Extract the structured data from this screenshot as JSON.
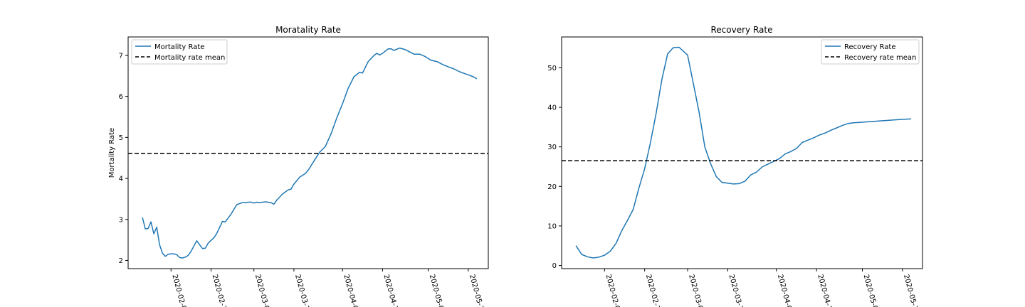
{
  "chart_data": [
    {
      "type": "line",
      "title": "Moratality Rate",
      "xlabel": "",
      "ylabel": "Mortality Rate",
      "xlim": [
        "2020-01-17",
        "2020-05-22"
      ],
      "ylim": [
        1.8,
        7.45
      ],
      "yticks": [
        2,
        3,
        4,
        5,
        6,
        7
      ],
      "xticks": [
        "2020-02-01",
        "2020-02-15",
        "2020-03-01",
        "2020-03-15",
        "2020-04-01",
        "2020-04-15",
        "2020-05-01",
        "2020-05-15"
      ],
      "xtick_labels": [
        "2020-02-0",
        "2020-02-1",
        "2020-03-0",
        "2020-03-1",
        "2020-04-0",
        "2020-04-1",
        "2020-05-0",
        "2020-05-1"
      ],
      "grid": false,
      "legend": "top-left",
      "series": [
        {
          "name": "Mortality Rate",
          "color": "#1f77b4",
          "style": "solid",
          "x": [
            "2020-01-22",
            "2020-01-23",
            "2020-01-24",
            "2020-01-25",
            "2020-01-26",
            "2020-01-27",
            "2020-01-28",
            "2020-01-29",
            "2020-01-30",
            "2020-01-31",
            "2020-02-01",
            "2020-02-02",
            "2020-02-03",
            "2020-02-04",
            "2020-02-05",
            "2020-02-06",
            "2020-02-07",
            "2020-02-08",
            "2020-02-10",
            "2020-02-12",
            "2020-02-13",
            "2020-02-14",
            "2020-02-15",
            "2020-02-16",
            "2020-02-17",
            "2020-02-19",
            "2020-02-20",
            "2020-02-22",
            "2020-02-24",
            "2020-02-26",
            "2020-02-27",
            "2020-02-28",
            "2020-02-29",
            "2020-03-01",
            "2020-03-02",
            "2020-03-03",
            "2020-03-05",
            "2020-03-07",
            "2020-03-08",
            "2020-03-09",
            "2020-03-11",
            "2020-03-13",
            "2020-03-14",
            "2020-03-15",
            "2020-03-17",
            "2020-03-19",
            "2020-03-20",
            "2020-03-22",
            "2020-03-24",
            "2020-03-26",
            "2020-03-28",
            "2020-03-30",
            "2020-04-01",
            "2020-04-03",
            "2020-04-05",
            "2020-04-07",
            "2020-04-08",
            "2020-04-10",
            "2020-04-12",
            "2020-04-13",
            "2020-04-14",
            "2020-04-15",
            "2020-04-17",
            "2020-04-18",
            "2020-04-19",
            "2020-04-21",
            "2020-04-23",
            "2020-04-26",
            "2020-04-28",
            "2020-04-30",
            "2020-05-02",
            "2020-05-04",
            "2020-05-06",
            "2020-05-08",
            "2020-05-10",
            "2020-05-12",
            "2020-05-14",
            "2020-05-16",
            "2020-05-17",
            "2020-05-18"
          ],
          "values": [
            3.05,
            2.77,
            2.78,
            2.94,
            2.65,
            2.81,
            2.38,
            2.18,
            2.1,
            2.15,
            2.16,
            2.16,
            2.14,
            2.07,
            2.06,
            2.08,
            2.12,
            2.22,
            2.48,
            2.29,
            2.3,
            2.42,
            2.49,
            2.55,
            2.66,
            2.95,
            2.94,
            3.13,
            3.36,
            3.41,
            3.41,
            3.42,
            3.42,
            3.4,
            3.42,
            3.41,
            3.43,
            3.41,
            3.37,
            3.47,
            3.62,
            3.72,
            3.74,
            3.86,
            4.03,
            4.12,
            4.2,
            4.42,
            4.64,
            4.78,
            5.09,
            5.48,
            5.82,
            6.2,
            6.48,
            6.59,
            6.57,
            6.85,
            7.0,
            7.05,
            7.01,
            7.05,
            7.16,
            7.16,
            7.12,
            7.18,
            7.14,
            7.03,
            7.03,
            6.97,
            6.88,
            6.85,
            6.78,
            6.72,
            6.67,
            6.6,
            6.55,
            6.5,
            6.47,
            6.43
          ]
        },
        {
          "name": "Mortality rate mean",
          "color": "#000000",
          "style": "dashed",
          "hline": 4.61
        }
      ]
    },
    {
      "type": "line",
      "title": "Recovery Rate",
      "xlabel": "",
      "ylabel": "",
      "xlim": [
        "2020-01-17",
        "2020-05-22"
      ],
      "ylim": [
        -0.8,
        57.8
      ],
      "yticks": [
        0,
        10,
        20,
        30,
        40,
        50
      ],
      "xticks": [
        "2020-02-01",
        "2020-02-15",
        "2020-03-01",
        "2020-03-15",
        "2020-04-01",
        "2020-04-15",
        "2020-05-01",
        "2020-05-15"
      ],
      "xtick_labels": [
        "2020-02-0",
        "2020-02-1",
        "2020-03-0",
        "2020-03-1",
        "2020-04-0",
        "2020-04-1",
        "2020-05-0",
        "2020-05-1"
      ],
      "grid": false,
      "legend": "top-right",
      "series": [
        {
          "name": "Recovery Rate",
          "color": "#1f77b4",
          "style": "solid",
          "x": [
            "2020-01-22",
            "2020-01-24",
            "2020-01-26",
            "2020-01-28",
            "2020-01-30",
            "2020-02-01",
            "2020-02-03",
            "2020-02-05",
            "2020-02-07",
            "2020-02-09",
            "2020-02-11",
            "2020-02-13",
            "2020-02-15",
            "2020-02-17",
            "2020-02-19",
            "2020-02-21",
            "2020-02-23",
            "2020-02-25",
            "2020-02-27",
            "2020-03-01",
            "2020-03-03",
            "2020-03-05",
            "2020-03-07",
            "2020-03-09",
            "2020-03-11",
            "2020-03-13",
            "2020-03-15",
            "2020-03-17",
            "2020-03-19",
            "2020-03-21",
            "2020-03-23",
            "2020-03-25",
            "2020-03-27",
            "2020-03-29",
            "2020-03-31",
            "2020-04-02",
            "2020-04-04",
            "2020-04-06",
            "2020-04-08",
            "2020-04-10",
            "2020-04-12",
            "2020-04-14",
            "2020-04-16",
            "2020-04-18",
            "2020-04-20",
            "2020-04-22",
            "2020-04-24",
            "2020-04-26",
            "2020-04-28",
            "2020-04-30",
            "2020-05-02",
            "2020-05-04",
            "2020-05-06",
            "2020-05-08",
            "2020-05-10",
            "2020-05-12",
            "2020-05-14",
            "2020-05-16",
            "2020-05-18"
          ],
          "values": [
            5.0,
            2.8,
            2.2,
            1.9,
            2.1,
            2.6,
            3.6,
            5.6,
            8.8,
            11.4,
            14.2,
            19.6,
            24.5,
            31.0,
            38.5,
            47.0,
            53.5,
            55.1,
            55.2,
            53.2,
            46.0,
            38.8,
            30.0,
            25.8,
            22.5,
            21.0,
            20.8,
            20.6,
            20.7,
            21.3,
            22.9,
            23.6,
            24.9,
            25.6,
            26.3,
            27.0,
            28.2,
            28.8,
            29.6,
            31.1,
            31.7,
            32.3,
            33.0,
            33.5,
            34.2,
            34.8,
            35.4,
            35.9,
            36.1,
            36.2,
            36.3,
            36.4,
            36.5,
            36.6,
            36.7,
            36.8,
            36.9,
            37.0,
            37.1
          ]
        },
        {
          "name": "Recovery rate mean",
          "color": "#000000",
          "style": "dashed",
          "hline": 26.5
        }
      ]
    }
  ]
}
